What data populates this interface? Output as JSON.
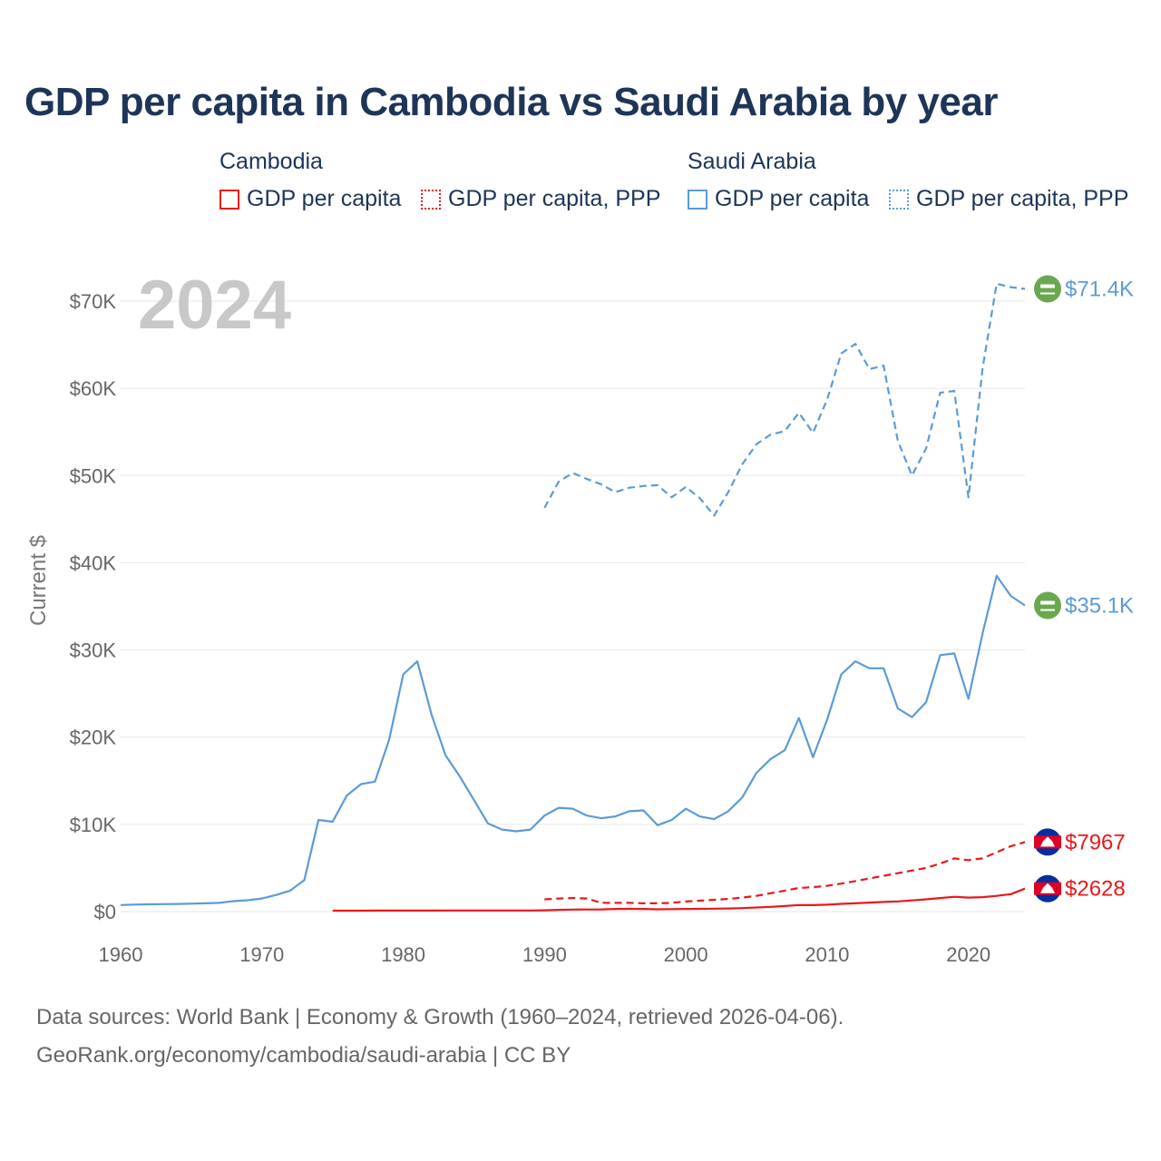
{
  "title": "GDP per capita in Cambodia vs Saudi Arabia by year",
  "legend": {
    "cambodia": {
      "group": "Cambodia",
      "gdp": "GDP per capita",
      "ppp": "GDP per capita, PPP"
    },
    "saudi": {
      "group": "Saudi Arabia",
      "gdp": "GDP per capita",
      "ppp": "GDP per capita, PPP"
    }
  },
  "footer": {
    "line1": "Data sources: World Bank | Economy & Growth (1960–2024, retrieved 2026-04-06).",
    "line2": "GeoRank.org/economy/cambodia/saudi-arabia | CC BY"
  },
  "colors": {
    "cambodia": "#e8191b",
    "saudi": "#5b9bd5",
    "grid": "#e6e6e6",
    "text": "#1d3557"
  },
  "chart_data": {
    "type": "line",
    "title": "GDP per capita in Cambodia vs Saudi Arabia by year",
    "xlabel": "",
    "ylabel": "Current $",
    "year_label": "2024",
    "xlim": [
      1960,
      2024
    ],
    "ylim": [
      0,
      70000
    ],
    "x_ticks": [
      1960,
      1970,
      1980,
      1990,
      2000,
      2010,
      2020
    ],
    "x_tick_labels": [
      "1960",
      "1970",
      "1980",
      "1990",
      "2000",
      "2010",
      "2020"
    ],
    "y_ticks": [
      0,
      10000,
      20000,
      30000,
      40000,
      50000,
      60000,
      70000
    ],
    "y_tick_labels": [
      "$0",
      "$10K",
      "$20K",
      "$30K",
      "$40K",
      "$50K",
      "$60K",
      "$70K"
    ],
    "grid": true,
    "series": [
      {
        "name": "Saudi Arabia GDP per capita, PPP",
        "country": "saudi",
        "style": "dashed",
        "end_label": "$71.4K",
        "end_icon": "saudi-flag-icon",
        "x": [
          1990,
          1991,
          1992,
          1993,
          1994,
          1995,
          1996,
          1997,
          1998,
          1999,
          2000,
          2001,
          2002,
          2003,
          2004,
          2005,
          2006,
          2007,
          2008,
          2009,
          2010,
          2011,
          2012,
          2013,
          2014,
          2015,
          2016,
          2017,
          2018,
          2019,
          2020,
          2021,
          2022,
          2023,
          2024
        ],
        "values": [
          46300,
          49300,
          50300,
          49600,
          49000,
          48100,
          48600,
          48800,
          48900,
          47500,
          48700,
          47400,
          45400,
          48100,
          51300,
          53600,
          54700,
          55100,
          57200,
          54900,
          58700,
          64000,
          65100,
          62200,
          62600,
          54000,
          50000,
          53100,
          59500,
          59700,
          47500,
          62300,
          72000,
          71600,
          71400
        ]
      },
      {
        "name": "Saudi Arabia GDP per capita",
        "country": "saudi",
        "style": "solid",
        "end_label": "$35.1K",
        "end_icon": "saudi-flag-icon",
        "x": [
          1960,
          1961,
          1962,
          1963,
          1964,
          1965,
          1966,
          1967,
          1968,
          1969,
          1970,
          1971,
          1972,
          1973,
          1974,
          1975,
          1976,
          1977,
          1978,
          1979,
          1980,
          1981,
          1982,
          1983,
          1984,
          1985,
          1986,
          1987,
          1988,
          1989,
          1990,
          1991,
          1992,
          1993,
          1994,
          1995,
          1996,
          1997,
          1998,
          1999,
          2000,
          2001,
          2002,
          2003,
          2004,
          2005,
          2006,
          2007,
          2008,
          2009,
          2010,
          2011,
          2012,
          2013,
          2014,
          2015,
          2016,
          2017,
          2018,
          2019,
          2020,
          2021,
          2022,
          2023,
          2024
        ],
        "values": [
          750,
          800,
          830,
          850,
          870,
          900,
          950,
          1000,
          1200,
          1300,
          1500,
          1900,
          2400,
          3600,
          10500,
          10300,
          13300,
          14600,
          14900,
          19700,
          27200,
          28700,
          22600,
          17900,
          15500,
          12800,
          10100,
          9400,
          9200,
          9400,
          11000,
          11900,
          11800,
          11000,
          10700,
          10900,
          11500,
          11600,
          9900,
          10500,
          11800,
          10900,
          10600,
          11500,
          13100,
          15900,
          17500,
          18500,
          22200,
          17700,
          22000,
          27200,
          28700,
          27900,
          27900,
          23300,
          22300,
          24000,
          29400,
          29600,
          24400,
          31900,
          38500,
          36200,
          35100
        ]
      },
      {
        "name": "Cambodia GDP per capita, PPP",
        "country": "cambodia",
        "style": "dashed",
        "end_label": "$7967",
        "end_icon": "cambodia-flag-icon",
        "x": [
          1990,
          1991,
          1992,
          1993,
          1994,
          1995,
          1996,
          1997,
          1998,
          1999,
          2000,
          2001,
          2002,
          2003,
          2004,
          2005,
          2006,
          2007,
          2008,
          2009,
          2010,
          2011,
          2012,
          2013,
          2014,
          2015,
          2016,
          2017,
          2018,
          2019,
          2020,
          2021,
          2022,
          2023,
          2024
        ],
        "values": [
          1400,
          1500,
          1550,
          1500,
          1000,
          1000,
          1000,
          950,
          950,
          1000,
          1150,
          1250,
          1350,
          1450,
          1600,
          1800,
          2100,
          2400,
          2700,
          2800,
          2950,
          3200,
          3500,
          3800,
          4100,
          4400,
          4700,
          5000,
          5500,
          6100,
          5900,
          6100,
          6800,
          7500,
          7967
        ]
      },
      {
        "name": "Cambodia GDP per capita",
        "country": "cambodia",
        "style": "solid",
        "end_label": "$2628",
        "end_icon": "cambodia-flag-icon",
        "x": [
          1975,
          1976,
          1977,
          1978,
          1979,
          1980,
          1981,
          1982,
          1983,
          1984,
          1985,
          1986,
          1987,
          1988,
          1989,
          1990,
          1991,
          1992,
          1993,
          1994,
          1995,
          1996,
          1997,
          1998,
          1999,
          2000,
          2001,
          2002,
          2003,
          2004,
          2005,
          2006,
          2007,
          2008,
          2009,
          2010,
          2011,
          2012,
          2013,
          2014,
          2015,
          2016,
          2017,
          2018,
          2019,
          2020,
          2021,
          2022,
          2023,
          2024
        ],
        "values": [
          100,
          100,
          100,
          110,
          110,
          110,
          110,
          110,
          120,
          120,
          120,
          120,
          130,
          130,
          130,
          150,
          200,
          230,
          240,
          250,
          300,
          310,
          300,
          260,
          280,
          300,
          310,
          330,
          350,
          400,
          470,
          540,
          630,
          750,
          740,
          790,
          880,
          950,
          1030,
          1100,
          1170,
          1280,
          1400,
          1550,
          1700,
          1600,
          1650,
          1800,
          2000,
          2628
        ]
      }
    ]
  }
}
